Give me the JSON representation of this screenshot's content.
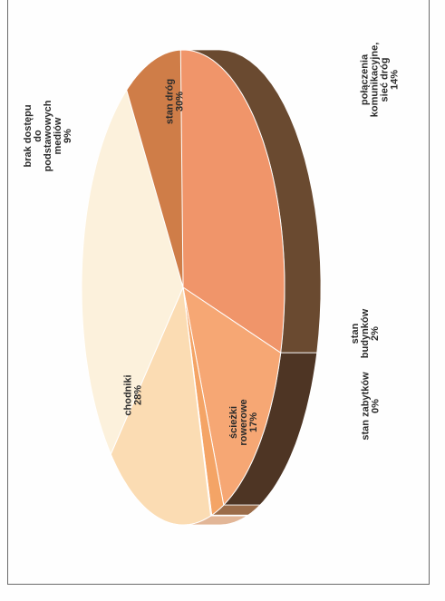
{
  "chart_data": {
    "type": "pie",
    "title": "",
    "categories": [
      "stan dróg",
      "połączenia komunikacyjne, sieć dróg",
      "stan budynków",
      "stan zabytków",
      "ścieżki rowerowe",
      "chodniki",
      "brak dostępu do podstawowych mediów"
    ],
    "values": [
      30,
      14,
      2,
      0,
      17,
      28,
      9
    ],
    "labels": [
      {
        "lines": [
          "stan dróg",
          "30%"
        ]
      },
      {
        "lines": [
          "połączenia",
          "komunikacyjne,",
          "sieć dróg",
          "14%"
        ]
      },
      {
        "lines": [
          "stan",
          "budynków",
          "2%"
        ]
      },
      {
        "lines": [
          "stan zabytków",
          "0%"
        ]
      },
      {
        "lines": [
          "ścieżki",
          "rowerowe",
          "17%"
        ]
      },
      {
        "lines": [
          "chodniki",
          "28%"
        ]
      },
      {
        "lines": [
          "brak dostępu",
          "do",
          "podstawowych",
          "mediów",
          "9%"
        ]
      }
    ],
    "colors": [
      "#f0956a",
      "#f6a774",
      "#f4a466",
      "#f8c58c",
      "#fbdcb3",
      "#fcf1dc",
      "#cf7d48"
    ],
    "side_colors": [
      "#6a4a30",
      "#4e3524",
      "#9b6c49",
      "#c99b7e",
      "#e2b697",
      "#e8c9b0",
      "#8a5a38"
    ],
    "legend": "none",
    "orientation": "rotated-90-ccw",
    "projection": "3d-tilted"
  }
}
